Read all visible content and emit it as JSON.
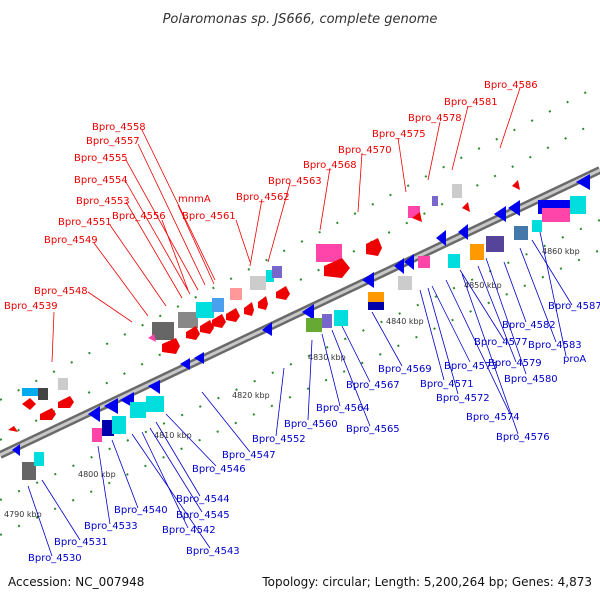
{
  "title": "Polaromonas sp. JS666, complete genome",
  "footer": {
    "accession": "Accession: NC_007948",
    "topology": "Topology: circular; Length: 5,200,264 bp; Genes: 4,873"
  },
  "colors": {
    "forward_label": "#ee0000",
    "reverse_label": "#0000cc",
    "backbone": "#888888"
  },
  "ticks": [
    "4790 kbp",
    "4800 kbp",
    "4810 kbp",
    "4820 kbp",
    "4830 kbp",
    "4840 kbp",
    "4850 kbp",
    "4860 kbp"
  ],
  "top_labels": [
    "Bpro_4586",
    "Bpro_4581",
    "Bpro_4578",
    "Bpro_4575",
    "Bpro_4570",
    "Bpro_4568",
    "Bpro_4563",
    "Bpro_4562",
    "Bpro_4561",
    "Bpro_4558",
    "Bpro_4557",
    "Bpro_4555",
    "Bpro_4554",
    "Bpro_4553",
    "Bpro_4556",
    "mnmA",
    "Bpro_4551",
    "Bpro_4549",
    "Bpro_4548",
    "Bpro_4539"
  ],
  "bottom_labels": [
    "Bpro_4587",
    "Bpro_4583",
    "proA",
    "Bpro_4582",
    "Bpro_4579",
    "Bpro_4577",
    "Bpro_4580",
    "Bpro_4573",
    "Bpro_4569",
    "Bpro_4571",
    "Bpro_4572",
    "Bpro_4574",
    "Bpro_4576",
    "Bpro_4567",
    "Bpro_4565",
    "Bpro_4564",
    "Bpro_4560",
    "Bpro_4552",
    "Bpro_4547",
    "Bpro_4546",
    "Bpro_4544",
    "Bpro_4545",
    "Bpro_4542",
    "Bpro_4543",
    "Bpro_4540",
    "Bpro_4533",
    "Bpro_4531",
    "Bpro_4530"
  ]
}
